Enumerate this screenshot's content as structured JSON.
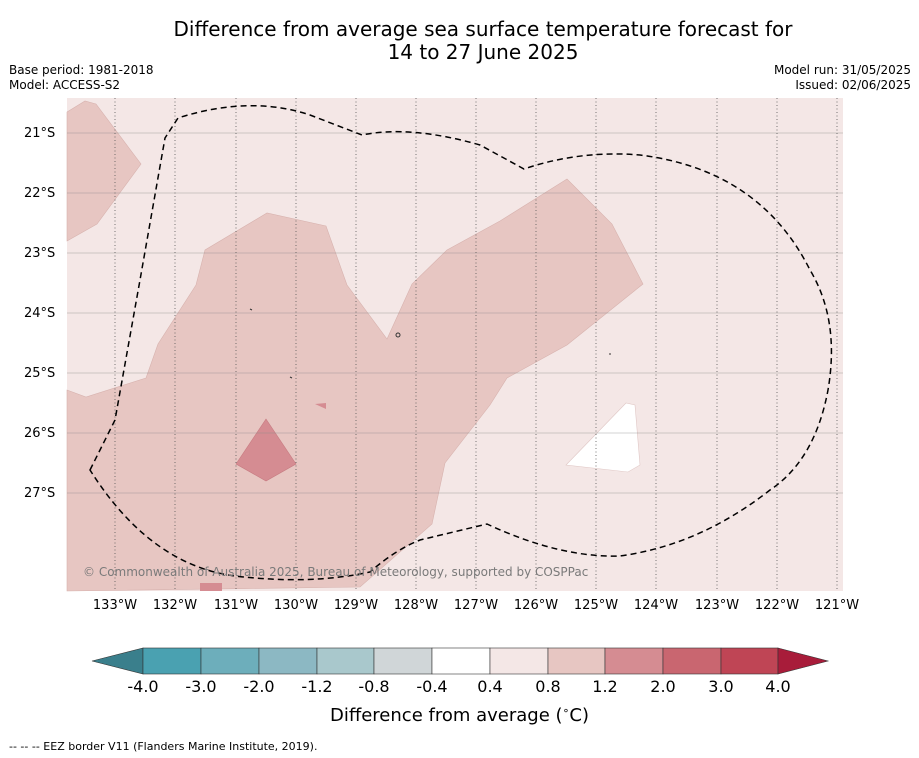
{
  "title_line1": "Difference from average sea surface temperature forecast for",
  "title_line2": "14 to 27 June 2025",
  "meta_left": {
    "base_period": "Base period: 1981-2018",
    "model": "Model: ACCESS-S2"
  },
  "meta_right": {
    "model_run": "Model run: 31/05/2025",
    "issued": "Issued: 02/06/2025"
  },
  "copyright": "© Commonwealth of Australia 2025, Bureau of Meteorology, supported by COSPPac",
  "map": {
    "lat_labels": [
      "21°S",
      "22°S",
      "23°S",
      "24°S",
      "25°S",
      "26°S",
      "27°S"
    ],
    "lon_labels": [
      "133°W",
      "132°W",
      "131°W",
      "130°W",
      "129°W",
      "128°W",
      "127°W",
      "126°W",
      "125°W",
      "124°W",
      "123°W",
      "122°W",
      "121°W"
    ],
    "colors": {
      "bin_0.4_0.8": "#f4e7e6",
      "bin_0.8_1.2": "#e7c6c2",
      "bin_1.2_2.0": "#d58c92",
      "bin_-0.4_0.4": "#ffffff"
    },
    "eez_border": "dashed"
  },
  "colorbar": {
    "tick_labels": [
      "-4.0",
      "-3.0",
      "-2.0",
      "-1.2",
      "-0.8",
      "-0.4",
      "0.4",
      "0.8",
      "1.2",
      "2.0",
      "3.0",
      "4.0"
    ],
    "colors": [
      "#3a7f8c",
      "#4aa1b1",
      "#6daebb",
      "#8cb8c3",
      "#a9c8cc",
      "#d0d6d8",
      "#ffffff",
      "#f4e7e6",
      "#e7c6c2",
      "#d58c92",
      "#c96670",
      "#bf4555",
      "#a81c3a"
    ],
    "label": "Difference from average (°C)",
    "label_prefix": "Difference from average (",
    "label_degree": "∘",
    "label_unit": "C)"
  },
  "footer": "--  --  -- EEZ border V11 (Flanders Marine Institute, 2019)."
}
